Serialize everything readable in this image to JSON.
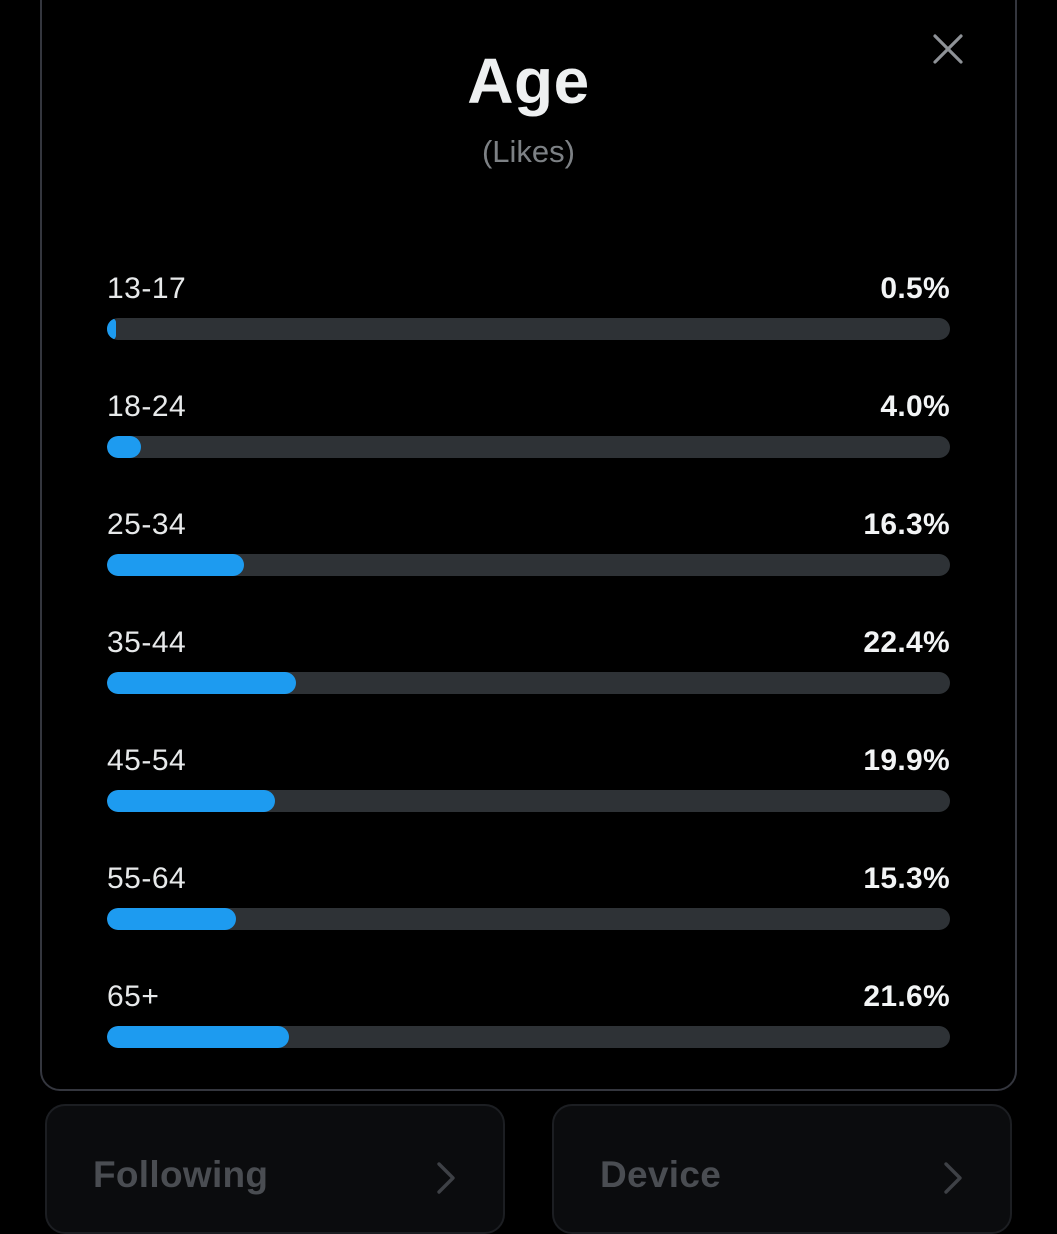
{
  "modal": {
    "title": "Age",
    "subtitle": "(Likes)",
    "close_icon": "x-close"
  },
  "chart_data": {
    "type": "bar",
    "orientation": "horizontal",
    "title": "Age",
    "subtitle": "(Likes)",
    "categories": [
      "13-17",
      "18-24",
      "25-34",
      "35-44",
      "45-54",
      "55-64",
      "65+"
    ],
    "values": [
      0.5,
      4.0,
      16.3,
      22.4,
      19.9,
      15.3,
      21.6
    ],
    "value_labels": [
      "0.5%",
      "4.0%",
      "16.3%",
      "22.4%",
      "19.9%",
      "15.3%",
      "21.6%"
    ],
    "xlim": [
      0,
      100
    ],
    "legend": "none",
    "grid": false,
    "bar_color": "#1d9bf0",
    "track_color": "#2e3236"
  },
  "background_cards": [
    {
      "label": "Following"
    },
    {
      "label": "Device"
    }
  ],
  "colors": {
    "background": "#000000",
    "accent_blue": "#1d9bf0",
    "bar_track": "#2e3236",
    "text_primary": "#e7e9ea",
    "text_secondary": "#7d8185",
    "modal_border": "#34363e",
    "dimmed_card_text": "#4a4d52"
  }
}
